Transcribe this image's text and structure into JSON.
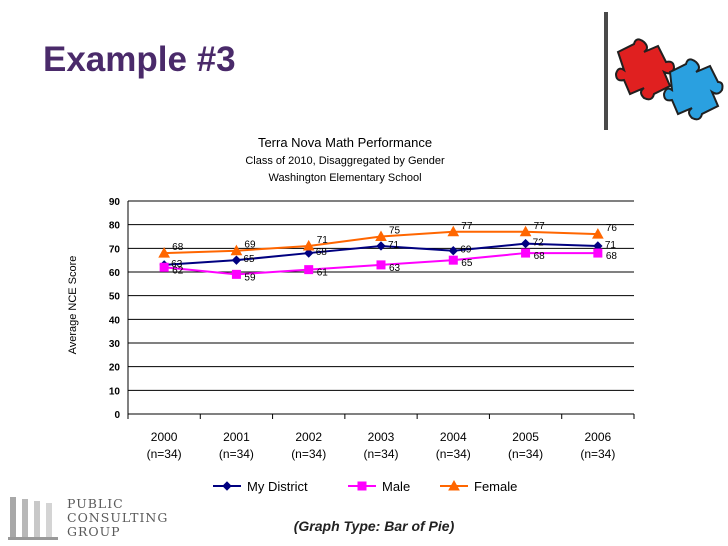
{
  "slide": {
    "title": "Example #3",
    "caption": "(Graph Type: Bar of Pie)",
    "logo": {
      "lines": [
        "PUBLIC",
        "CONSULTING",
        "GROUP"
      ]
    },
    "puzzle_colors": {
      "red": "#e02020",
      "blue": "#2aa0e0"
    }
  },
  "chart_data": {
    "type": "line",
    "title": "Terra Nova Math Performance",
    "subtitle": "Class of 2010, Disaggregated by Gender",
    "subtitle2": "Washington Elementary School",
    "ylabel": "Average NCE Score",
    "xlabel": "",
    "ylim": [
      0,
      90
    ],
    "yticks": [
      "0",
      "10",
      "20",
      "30",
      "40",
      "50",
      "60",
      "70",
      "80",
      "90"
    ],
    "grid": true,
    "categories": [
      {
        "year": "2000",
        "n": "(n=34)"
      },
      {
        "year": "2001",
        "n": "(n=34)"
      },
      {
        "year": "2002",
        "n": "(n=34)"
      },
      {
        "year": "2003",
        "n": "(n=34)"
      },
      {
        "year": "2004",
        "n": "(n=34)"
      },
      {
        "year": "2005",
        "n": "(n=34)"
      },
      {
        "year": "2006",
        "n": "(n=34)"
      }
    ],
    "series": [
      {
        "name": "My District",
        "values": [
          63,
          65,
          68,
          71,
          69,
          72,
          71
        ],
        "labels": [
          "63",
          "65",
          "68",
          "71",
          "69",
          "72",
          "71"
        ],
        "color": "#000080",
        "marker": "diamond"
      },
      {
        "name": "Male",
        "values": [
          62,
          59,
          61,
          63,
          65,
          68,
          68
        ],
        "labels": [
          "62",
          "59",
          "61",
          "63",
          "65",
          "68",
          "68"
        ],
        "color": "#ff00ff",
        "marker": "square"
      },
      {
        "name": "Female",
        "values": [
          68,
          69,
          71,
          75,
          77,
          77,
          76
        ],
        "labels": [
          "68",
          "69",
          "71",
          "75",
          "77",
          "77",
          "76"
        ],
        "color": "#ff6600",
        "marker": "triangle"
      }
    ],
    "legend_position": "bottom"
  }
}
